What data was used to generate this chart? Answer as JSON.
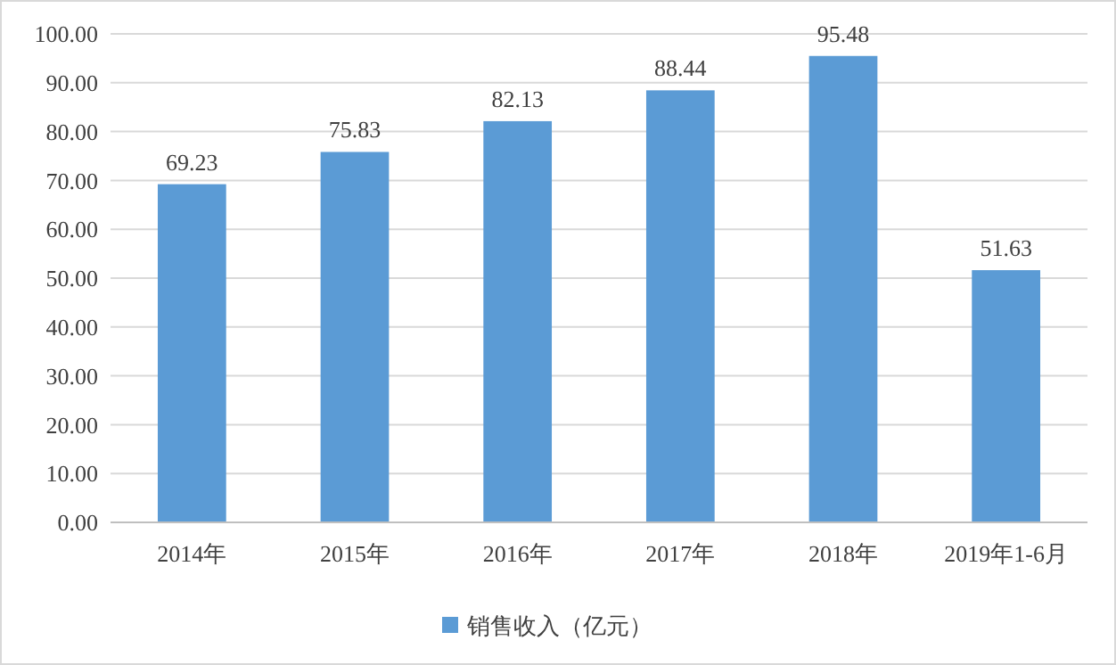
{
  "chart_data": {
    "type": "bar",
    "categories": [
      "2014年",
      "2015年",
      "2016年",
      "2017年",
      "2018年",
      "2019年1-6月"
    ],
    "series": [
      {
        "name": "销售收入（亿元）",
        "color": "#5b9bd5",
        "values": [
          69.23,
          75.83,
          82.13,
          88.44,
          95.48,
          51.63
        ]
      }
    ],
    "ylim": [
      0,
      100
    ],
    "yticks": [
      {
        "value": 0,
        "label": "0.00"
      },
      {
        "value": 10,
        "label": "10.00"
      },
      {
        "value": 20,
        "label": "20.00"
      },
      {
        "value": 30,
        "label": "30.00"
      },
      {
        "value": 40,
        "label": "40.00"
      },
      {
        "value": 50,
        "label": "50.00"
      },
      {
        "value": 60,
        "label": "60.00"
      },
      {
        "value": 70,
        "label": "70.00"
      },
      {
        "value": 80,
        "label": "80.00"
      },
      {
        "value": 90,
        "label": "90.00"
      },
      {
        "value": 100,
        "label": "100.00"
      }
    ],
    "grid": "y",
    "data_labels": true,
    "legend": "bottom"
  }
}
